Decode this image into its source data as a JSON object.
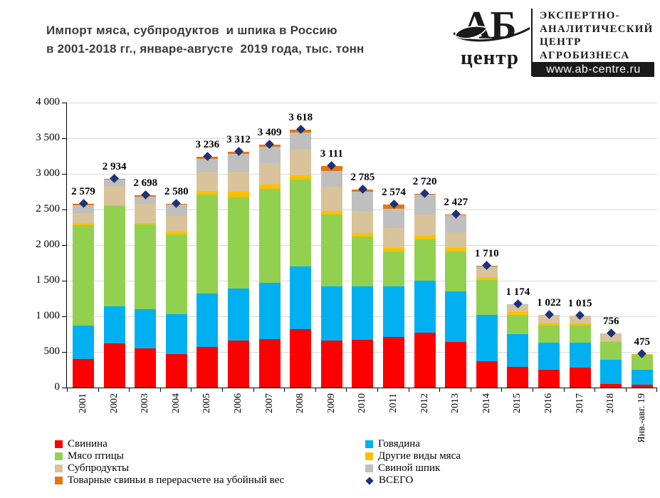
{
  "header": {
    "title_line1": "Импорт мяса, субпродуктов  и шпика в Россию",
    "title_line2": "в 2001-2018 гг., январе-августе  2019 года, тыс. тонн",
    "logo": {
      "abbr": "АБ",
      "sub": "центр",
      "org_lines": [
        "ЭКСПЕРТНО-",
        "АНАЛИТИЧЕСКИЙ",
        "ЦЕНТР",
        "АГРОБИЗНЕСА"
      ],
      "website": "www.ab-centre.ru"
    }
  },
  "chart_data": {
    "type": "bar",
    "stacked": true,
    "title": "Импорт мяса, субпродуктов и шпика в Россию в 2001-2018 гг., январе-августе 2019 года, тыс. тонн",
    "ylabel": "Тыс. тонн",
    "xlabel": "",
    "ylim": [
      0,
      4000
    ],
    "y_tick_step": 500,
    "y_ticks": [
      "4 000",
      "3 500",
      "3 000",
      "2 500",
      "2 000",
      "1 500",
      "1 000",
      "500",
      "0"
    ],
    "grid": true,
    "legend_position": "bottom",
    "categories": [
      "2001",
      "2002",
      "2003",
      "2004",
      "2005",
      "2006",
      "2007",
      "2008",
      "2009",
      "2010",
      "2011",
      "2012",
      "2013",
      "2014",
      "2015",
      "2016",
      "2017",
      "2018",
      "Янв.-авг. 19"
    ],
    "series": [
      {
        "name": "Свинина",
        "color": "#FF0000",
        "values": [
          400,
          620,
          550,
          470,
          570,
          660,
          685,
          820,
          665,
          670,
          710,
          775,
          640,
          375,
          295,
          255,
          280,
          55,
          45
        ]
      },
      {
        "name": "Говядина",
        "color": "#00B0F0",
        "values": [
          470,
          520,
          550,
          565,
          750,
          735,
          790,
          885,
          760,
          755,
          715,
          730,
          715,
          645,
          460,
          375,
          355,
          340,
          210
        ]
      },
      {
        "name": "Мясо птицы",
        "color": "#92D050",
        "values": [
          1415,
          1410,
          1195,
          1115,
          1395,
          1280,
          1315,
          1215,
          1005,
          700,
          490,
          575,
          560,
          490,
          270,
          245,
          240,
          245,
          205
        ]
      },
      {
        "name": "Другие виды мяса",
        "color": "#FFC000",
        "values": [
          15,
          15,
          20,
          40,
          50,
          75,
          65,
          60,
          55,
          45,
          45,
          60,
          45,
          40,
          35,
          25,
          30,
          10,
          8
        ]
      },
      {
        "name": "Субпродукты",
        "color": "#D8C39B",
        "values": [
          150,
          270,
          265,
          225,
          270,
          285,
          300,
          360,
          340,
          300,
          280,
          290,
          225,
          120,
          105,
          118,
          107,
          105,
          7
        ]
      },
      {
        "name": "Свиной шпик",
        "color": "#BFBFBF",
        "values": [
          115,
          90,
          105,
          160,
          180,
          250,
          230,
          245,
          211,
          280,
          274,
          283,
          235,
          35,
          5,
          2,
          2,
          1,
          0
        ]
      },
      {
        "name": "Товарные свиньи в перерасчете на убойный вес",
        "color": "#E8760D",
        "values": [
          14,
          9,
          13,
          5,
          21,
          27,
          24,
          33,
          75,
          35,
          60,
          7,
          7,
          5,
          4,
          2,
          1,
          0,
          0
        ]
      }
    ],
    "totals_series": {
      "name": "ВСЕГО",
      "marker": "diamond",
      "color": "#1F3278",
      "values": [
        2579,
        2934,
        2698,
        2580,
        3236,
        3312,
        3409,
        3618,
        3111,
        2785,
        2574,
        2720,
        2427,
        1710,
        1174,
        1022,
        1015,
        756,
        475
      ],
      "labels": [
        "2 579",
        "2 934",
        "2 698",
        "2 580",
        "3 236",
        "3 312",
        "3 409",
        "3 618",
        "3 111",
        "2 785",
        "2 574",
        "2 720",
        "2 427",
        "1 710",
        "1 174",
        "1 022",
        "1 015",
        "756",
        "475"
      ]
    },
    "colors": {
      "gridline": "#D9D9D9",
      "axis": "#000000"
    }
  },
  "legend": {
    "left": [
      {
        "label": "Свинина",
        "color": "#FF0000",
        "marker": "square"
      },
      {
        "label": "Мясо птицы",
        "color": "#92D050",
        "marker": "square"
      },
      {
        "label": "Субпродукты",
        "color": "#D8C39B",
        "marker": "square"
      },
      {
        "label": "Товарные свиньи в перерасчете на убойный вес",
        "color": "#E8760D",
        "marker": "square"
      }
    ],
    "right": [
      {
        "label": "Говядина",
        "color": "#00B0F0",
        "marker": "square"
      },
      {
        "label": "Другие виды мяса",
        "color": "#FFC000",
        "marker": "square"
      },
      {
        "label": "Свиной шпик",
        "color": "#BFBFBF",
        "marker": "square"
      },
      {
        "label": "ВСЕГО",
        "color": "#1F3278",
        "marker": "diamond"
      }
    ]
  }
}
